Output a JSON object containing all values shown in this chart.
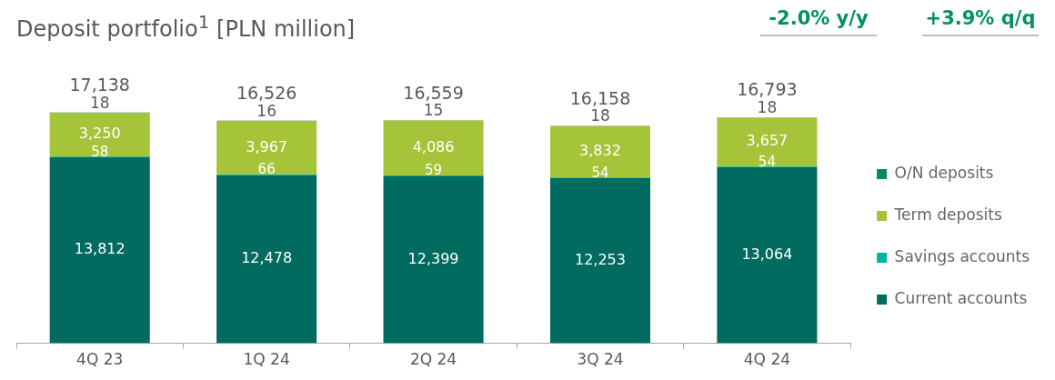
{
  "chart_data": {
    "type": "bar",
    "title": "Deposit portfolio$^{1}$ [PLN million]",
    "annotations": [
      "-2.0% y/y",
      "+3.9% q/q"
    ],
    "categories": [
      "4Q 23",
      "1Q 24",
      "2Q 24",
      "3Q 24",
      "4Q 24"
    ],
    "stacked": true,
    "series": [
      {
        "name": "Current accounts",
        "color": "#006b5e",
        "values": [
          13812,
          12478,
          12399,
          12253,
          13064
        ],
        "value_labels": [
          "13,812",
          "12,478",
          "12,399",
          "12,253",
          "13,064"
        ]
      },
      {
        "name": "Savings accounts",
        "color": "#00b4a0",
        "values": [
          58,
          66,
          59,
          54,
          54
        ],
        "value_labels": [
          "58",
          "66",
          "59",
          "54",
          "54"
        ]
      },
      {
        "name": "Term deposits",
        "color": "#a6c43a",
        "values": [
          3250,
          3967,
          4086,
          3832,
          3657
        ],
        "value_labels": [
          "3,250",
          "3,967",
          "4,086",
          "3,832",
          "3,657"
        ]
      },
      {
        "name": "O/N deposits",
        "color": "#008c62",
        "values": [
          18,
          16,
          15,
          18,
          18
        ],
        "value_labels": [
          "18",
          "16",
          "15",
          "18",
          "18"
        ]
      }
    ],
    "totals": [
      "17,138",
      "16,526",
      "16,559",
      "16,158",
      "16,793"
    ],
    "tick_labels": "x",
    "grid": false,
    "legend": "right"
  }
}
